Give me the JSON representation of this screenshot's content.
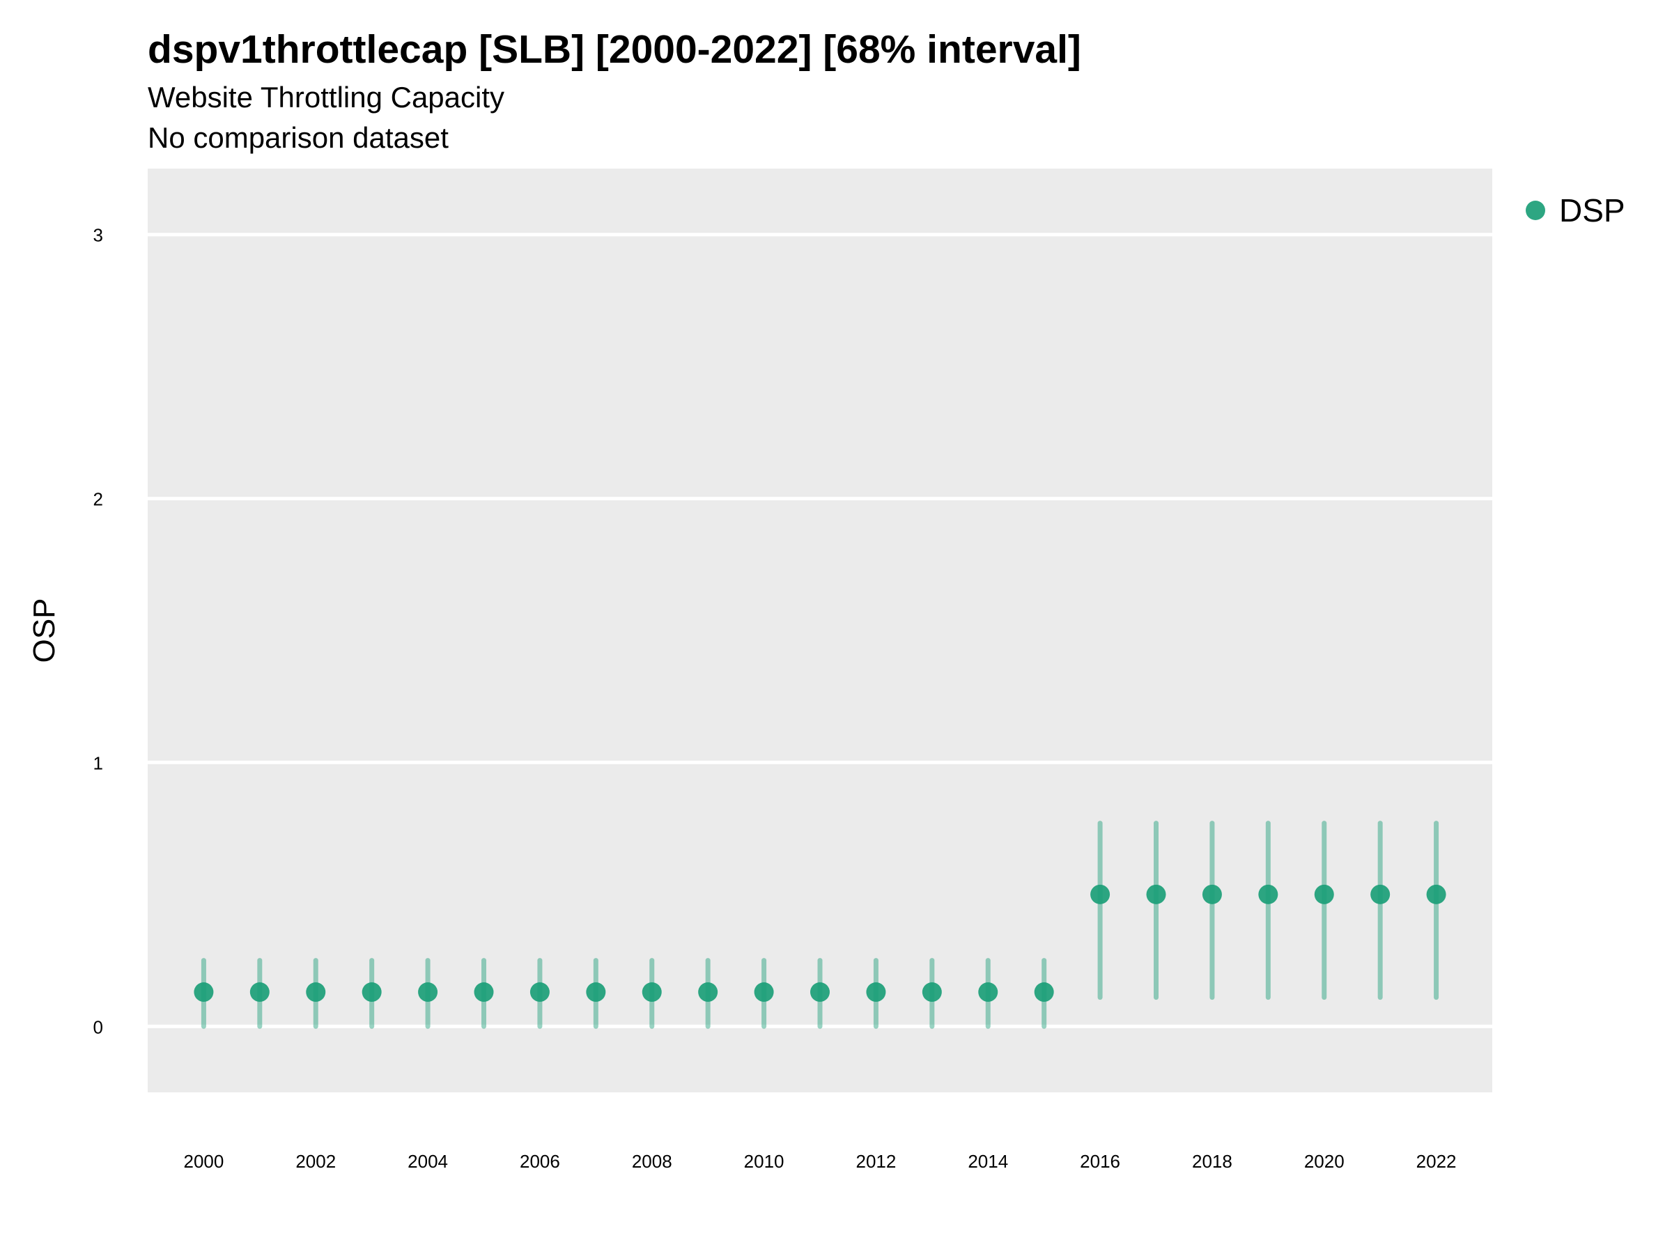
{
  "title": "dspv1throttlecap [SLB] [2000-2022] [68% interval]",
  "subtitle": "Website Throttling Capacity",
  "subtitle2": "No comparison dataset",
  "colors": {
    "panel_bg": "#ebebeb",
    "grid": "#ffffff",
    "series": "#1b9e77"
  },
  "chart_data": {
    "type": "scatter",
    "ylabel": "OSP",
    "xlabel": "",
    "ylim": [
      -0.25,
      3.25
    ],
    "xlim": [
      1999,
      2023
    ],
    "y_ticks": [
      0,
      1,
      2,
      3
    ],
    "x_ticks": [
      2000,
      2002,
      2004,
      2006,
      2008,
      2010,
      2012,
      2014,
      2016,
      2018,
      2020,
      2022
    ],
    "legend": {
      "position": "top-right",
      "entries": [
        "DSP"
      ]
    },
    "grid": true,
    "series": [
      {
        "name": "DSP",
        "x": [
          2000,
          2001,
          2002,
          2003,
          2004,
          2005,
          2006,
          2007,
          2008,
          2009,
          2010,
          2011,
          2012,
          2013,
          2014,
          2015,
          2016,
          2017,
          2018,
          2019,
          2020,
          2021,
          2022
        ],
        "y": [
          0.13,
          0.13,
          0.13,
          0.13,
          0.13,
          0.13,
          0.13,
          0.13,
          0.13,
          0.13,
          0.13,
          0.13,
          0.13,
          0.13,
          0.13,
          0.13,
          0.5,
          0.5,
          0.5,
          0.5,
          0.5,
          0.5,
          0.5
        ],
        "lower": [
          0.0,
          0.0,
          0.0,
          0.0,
          0.0,
          0.0,
          0.0,
          0.0,
          0.0,
          0.0,
          0.0,
          0.0,
          0.0,
          0.0,
          0.0,
          0.0,
          0.11,
          0.11,
          0.11,
          0.11,
          0.11,
          0.11,
          0.11
        ],
        "upper": [
          0.25,
          0.25,
          0.25,
          0.25,
          0.25,
          0.25,
          0.25,
          0.25,
          0.25,
          0.25,
          0.25,
          0.25,
          0.25,
          0.25,
          0.25,
          0.25,
          0.77,
          0.77,
          0.77,
          0.77,
          0.77,
          0.77,
          0.77
        ]
      }
    ]
  }
}
